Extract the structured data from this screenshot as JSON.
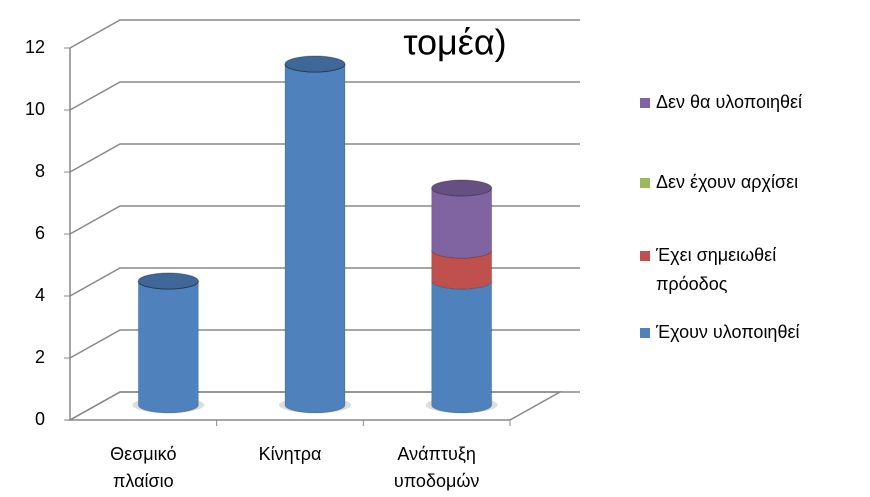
{
  "chart_data": {
    "type": "bar3d_stacked",
    "title": "τομέα)",
    "categories": [
      "Θεσμικό πλαίσιο",
      "Κίνητρα",
      "Ανάπτυξη υποδομών"
    ],
    "series": [
      {
        "name": "Έχουν υλοποιηθεί",
        "color": "#4f81bd",
        "values": [
          4,
          11,
          4
        ]
      },
      {
        "name": "Έχει σημειωθεί πρόοδος",
        "color": "#c0504d",
        "values": [
          0,
          0,
          1
        ]
      },
      {
        "name": "Δεν έχουν αρχίσει",
        "color": "#9bbb59",
        "values": [
          0,
          0,
          0
        ]
      },
      {
        "name": "Δεν θα υλοποιηθεί",
        "color": "#8064a2",
        "values": [
          0,
          0,
          2
        ]
      }
    ],
    "ylim": [
      0,
      12
    ],
    "yticks": [
      0,
      2,
      4,
      6,
      8,
      10,
      12
    ],
    "grid": true,
    "legend": "right"
  }
}
